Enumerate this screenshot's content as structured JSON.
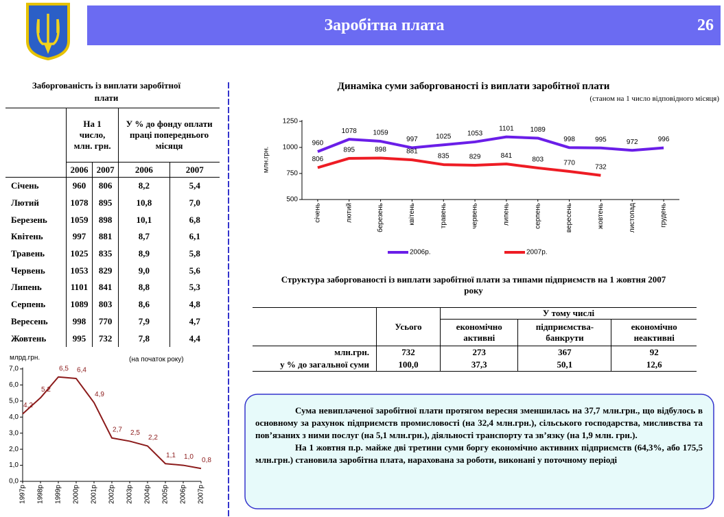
{
  "header": {
    "title": "Заробітна плата",
    "page": "26"
  },
  "arrears_table": {
    "title": "Заборгованість із виплати заробітної плати",
    "headers": [
      "На 1 число, млн. грн.",
      "У % до фонду оплати праці попереднього місяця"
    ],
    "years": [
      "2006",
      "2007",
      "2006",
      "2007"
    ],
    "rows": [
      [
        "Січень",
        "960",
        "806",
        "8,2",
        "5,4"
      ],
      [
        "Лютий",
        "1078",
        "895",
        "10,8",
        "7,0"
      ],
      [
        "Березень",
        "1059",
        "898",
        "10,1",
        "6,8"
      ],
      [
        "Квітень",
        "997",
        "881",
        "8,7",
        "6,1"
      ],
      [
        "Травень",
        "1025",
        "835",
        "8,9",
        "5,8"
      ],
      [
        "Червень",
        "1053",
        "829",
        "9,0",
        "5,6"
      ],
      [
        "Липень",
        "1101",
        "841",
        "8,8",
        "5,3"
      ],
      [
        "Серпень",
        "1089",
        "803",
        "8,6",
        "4,8"
      ],
      [
        "Вересень",
        "998",
        "770",
        "7,9",
        "4,7"
      ],
      [
        "Жовтень",
        "995",
        "732",
        "7,8",
        "4,4"
      ]
    ]
  },
  "chart_data": [
    {
      "type": "line",
      "title": "Динаміка суми заборгованості із виплати заробітної плати",
      "subtitle": "(станом на 1 число відповідного місяця)",
      "y_label": "млн.грн.",
      "categories": [
        "січень",
        "лютий",
        "березень",
        "квітень",
        "травень",
        "червень",
        "липень",
        "серпень",
        "вересень",
        "жовтень",
        "листопад",
        "грудень"
      ],
      "series": [
        {
          "name": "2006р.",
          "color": "#6a1ee8",
          "values": [
            960,
            1078,
            1059,
            997,
            1025,
            1053,
            1101,
            1089,
            998,
            995,
            972,
            996
          ]
        },
        {
          "name": "2007р.",
          "color": "#ee1c24",
          "values": [
            806,
            895,
            898,
            881,
            835,
            829,
            841,
            803,
            770,
            732,
            null,
            null
          ]
        }
      ],
      "ylim": [
        500,
        1250
      ],
      "yticks": [
        500,
        750,
        1000,
        1250
      ],
      "grid": false,
      "legend": "bottom"
    },
    {
      "type": "line",
      "y_label": "млрд.грн.",
      "note": "(на початок року)",
      "categories": [
        "1997р",
        "1998р",
        "1999р",
        "2000р",
        "2001р",
        "2002р",
        "2003р",
        "2004р",
        "2005р",
        "2006р",
        "2007р"
      ],
      "values": [
        4.2,
        5.2,
        6.5,
        6.4,
        4.9,
        2.7,
        2.5,
        2.2,
        1.1,
        1.0,
        0.8
      ],
      "value_labels": [
        "4,2",
        "5,2",
        "6,5",
        "6,4",
        "4,9",
        "2,7",
        "2,5",
        "2,2",
        "1,1",
        "1,0",
        "0,8"
      ],
      "color": "#8b1a1a",
      "ylim": [
        0,
        7
      ],
      "yticks": [
        {
          "value": 0,
          "label": "0,0"
        },
        {
          "value": 1,
          "label": "1,0"
        },
        {
          "value": 2,
          "label": "2,0"
        },
        {
          "value": 3,
          "label": "3,0"
        },
        {
          "value": 4,
          "label": "4,0"
        },
        {
          "value": 5,
          "label": "5,0"
        },
        {
          "value": 6,
          "label": "6,0"
        },
        {
          "value": 7,
          "label": "7,0"
        }
      ],
      "grid": false
    }
  ],
  "structure_table": {
    "title": "Структура заборгованості із виплати заробітної плати за типами підприємств на 1 жовтня 2007 року",
    "total_header": "Усього",
    "group_header": "У тому числі",
    "subheaders": [
      "економічно активні",
      "підприємства-банкрути",
      "економічно неактивні"
    ],
    "rows": [
      [
        "млн.грн.",
        "732",
        "273",
        "367",
        "92"
      ],
      [
        "у % до загальної суми",
        "100,0",
        "37,3",
        "50,1",
        "12,6"
      ]
    ]
  },
  "note": {
    "paragraphs": [
      "Сума невиплаченої заробітної плати протягом вересня зменшилась на 37,7 млн.грн., що відбулось в основному за рахунок підприємств промисловості (на 32,4 млн.грн.), сільського господарства, мисливства та пов’язаних з ними послуг (на 5,1 млн.грн.), діяльності транспорту та зв’язку (на 1,9 млн. грн.).",
      "На 1 жовтня п.р. майже дві третини суми боргу економічно активних підприємств (64,3%, або 175,5 млн.грн.) становила заробітна плата, нарахована за роботи, виконані у поточному періоді"
    ]
  }
}
